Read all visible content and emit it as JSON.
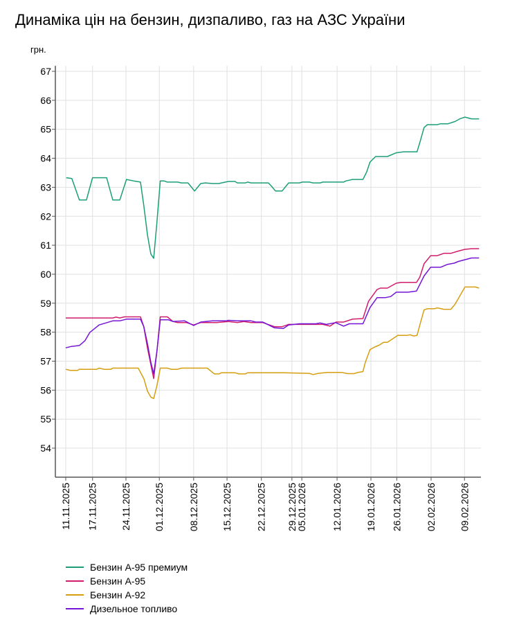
{
  "chart_data": {
    "type": "line",
    "title": "Динаміка цін на бензин, дизпаливо, газ на АЗС України",
    "ylabel": "грн.",
    "xlabel": "",
    "ylim": [
      53,
      67.2
    ],
    "xlim": [
      0,
      88
    ],
    "yticks": [
      54,
      55,
      56,
      57,
      58,
      59,
      60,
      61,
      62,
      63,
      64,
      65,
      66,
      67
    ],
    "xticks": [
      {
        "label": "11.11.2025",
        "x": 0
      },
      {
        "label": "17.11.2025",
        "x": 5.7
      },
      {
        "label": "24.11.2025",
        "x": 12.8
      },
      {
        "label": "01.12.2025",
        "x": 19.9
      },
      {
        "label": "08.12.2025",
        "x": 27.2
      },
      {
        "label": "15.12.2025",
        "x": 34.3
      },
      {
        "label": "22.12.2025",
        "x": 41.6
      },
      {
        "label": "29.12.2025",
        "x": 48.1
      },
      {
        "label": "05.01.2026",
        "x": 50.2
      },
      {
        "label": "12.01.2026",
        "x": 57.7
      },
      {
        "label": "19.01.2026",
        "x": 64.9
      },
      {
        "label": "26.01.2026",
        "x": 70.4
      },
      {
        "label": "02.02.2026",
        "x": 77.7
      },
      {
        "label": "09.02.2026",
        "x": 84.8
      }
    ],
    "grid": true,
    "legend_position": "bottom-left",
    "series": [
      {
        "name": "Бензин А-95 премиум",
        "color": "#1b9e77",
        "points": [
          [
            0.1,
            63.33
          ],
          [
            1.3,
            63.3
          ],
          [
            2.9,
            62.56
          ],
          [
            4.4,
            62.56
          ],
          [
            5.7,
            63.33
          ],
          [
            8.7,
            63.33
          ],
          [
            10,
            62.56
          ],
          [
            11.5,
            62.56
          ],
          [
            12.9,
            63.27
          ],
          [
            14.4,
            63.22
          ],
          [
            15.9,
            63.18
          ],
          [
            16.6,
            62.37
          ],
          [
            17.4,
            61.34
          ],
          [
            18.1,
            60.7
          ],
          [
            18.7,
            60.55
          ],
          [
            19.4,
            61.8
          ],
          [
            20.1,
            63.22
          ],
          [
            20.9,
            63.22
          ],
          [
            21.6,
            63.18
          ],
          [
            23.8,
            63.18
          ],
          [
            24.6,
            63.15
          ],
          [
            26,
            63.15
          ],
          [
            27.4,
            62.87
          ],
          [
            28.7,
            63.13
          ],
          [
            29.7,
            63.15
          ],
          [
            31.2,
            63.13
          ],
          [
            32.6,
            63.13
          ],
          [
            33.1,
            63.15
          ],
          [
            34.6,
            63.2
          ],
          [
            36,
            63.2
          ],
          [
            36.5,
            63.15
          ],
          [
            38.2,
            63.15
          ],
          [
            38.7,
            63.18
          ],
          [
            39.4,
            63.15
          ],
          [
            43.1,
            63.15
          ],
          [
            43.8,
            63.03
          ],
          [
            44.6,
            62.87
          ],
          [
            46,
            62.87
          ],
          [
            47.4,
            63.15
          ],
          [
            49.7,
            63.15
          ],
          [
            50.3,
            63.18
          ],
          [
            51.8,
            63.18
          ],
          [
            52.6,
            63.15
          ],
          [
            54.1,
            63.15
          ],
          [
            54.7,
            63.18
          ],
          [
            59.1,
            63.18
          ],
          [
            59.6,
            63.22
          ],
          [
            61,
            63.27
          ],
          [
            63.2,
            63.27
          ],
          [
            64,
            63.53
          ],
          [
            64.7,
            63.87
          ],
          [
            65.9,
            64.06
          ],
          [
            68.4,
            64.06
          ],
          [
            70.3,
            64.19
          ],
          [
            71.8,
            64.22
          ],
          [
            74.7,
            64.22
          ],
          [
            75.4,
            64.6
          ],
          [
            76.2,
            65.06
          ],
          [
            76.9,
            65.16
          ],
          [
            79,
            65.16
          ],
          [
            79.7,
            65.19
          ],
          [
            81.3,
            65.19
          ],
          [
            82.8,
            65.27
          ],
          [
            83.8,
            65.36
          ],
          [
            84.9,
            65.42
          ],
          [
            86.3,
            65.36
          ],
          [
            87.9,
            65.36
          ]
        ]
      },
      {
        "name": "Бензин А-95",
        "color": "#d01c6b",
        "points": [
          [
            0,
            58.49
          ],
          [
            10,
            58.49
          ],
          [
            10.7,
            58.52
          ],
          [
            11.5,
            58.49
          ],
          [
            12.5,
            58.53
          ],
          [
            15.9,
            58.53
          ],
          [
            16.6,
            58.19
          ],
          [
            17.4,
            57.44
          ],
          [
            18.1,
            56.88
          ],
          [
            18.7,
            56.4
          ],
          [
            19.4,
            57.35
          ],
          [
            20.1,
            58.53
          ],
          [
            21.6,
            58.53
          ],
          [
            22.8,
            58.37
          ],
          [
            23.8,
            58.33
          ],
          [
            25.7,
            58.33
          ],
          [
            27.2,
            58.25
          ],
          [
            28.7,
            58.33
          ],
          [
            31.2,
            58.33
          ],
          [
            32.1,
            58.33
          ],
          [
            34.6,
            58.37
          ],
          [
            36.5,
            58.33
          ],
          [
            37.9,
            58.37
          ],
          [
            39.4,
            58.33
          ],
          [
            41.9,
            58.33
          ],
          [
            44.4,
            58.19
          ],
          [
            46,
            58.19
          ],
          [
            47.4,
            58.27
          ],
          [
            54.7,
            58.27
          ],
          [
            56.2,
            58.21
          ],
          [
            57.5,
            58.35
          ],
          [
            59.1,
            58.35
          ],
          [
            61,
            58.45
          ],
          [
            63.2,
            58.47
          ],
          [
            64.4,
            59.07
          ],
          [
            66.2,
            59.47
          ],
          [
            66.9,
            59.52
          ],
          [
            68.4,
            59.52
          ],
          [
            70.3,
            59.69
          ],
          [
            71.3,
            59.72
          ],
          [
            74.6,
            59.72
          ],
          [
            75.3,
            59.9
          ],
          [
            76.2,
            60.36
          ],
          [
            77.6,
            60.64
          ],
          [
            79,
            60.64
          ],
          [
            80.4,
            60.72
          ],
          [
            81.9,
            60.72
          ],
          [
            83.5,
            60.8
          ],
          [
            84.9,
            60.86
          ],
          [
            86.3,
            60.88
          ],
          [
            87.9,
            60.88
          ]
        ]
      },
      {
        "name": "Бензин А-92",
        "color": "#d69e0f",
        "points": [
          [
            0,
            56.72
          ],
          [
            1,
            56.68
          ],
          [
            2.5,
            56.68
          ],
          [
            2.9,
            56.72
          ],
          [
            6.6,
            56.72
          ],
          [
            7.1,
            56.76
          ],
          [
            8.1,
            56.72
          ],
          [
            9.6,
            56.72
          ],
          [
            10,
            56.76
          ],
          [
            15.4,
            56.76
          ],
          [
            16.6,
            56.4
          ],
          [
            17.4,
            55.96
          ],
          [
            18.1,
            55.76
          ],
          [
            18.7,
            55.71
          ],
          [
            19.4,
            56.16
          ],
          [
            20.1,
            56.76
          ],
          [
            21.6,
            56.76
          ],
          [
            22.4,
            56.72
          ],
          [
            23.8,
            56.72
          ],
          [
            24.6,
            56.76
          ],
          [
            30.1,
            56.76
          ],
          [
            31.6,
            56.56
          ],
          [
            32.6,
            56.56
          ],
          [
            33.1,
            56.6
          ],
          [
            36,
            56.6
          ],
          [
            36.8,
            56.56
          ],
          [
            38.2,
            56.56
          ],
          [
            38.7,
            56.6
          ],
          [
            46.3,
            56.6
          ],
          [
            51.8,
            56.58
          ],
          [
            52.6,
            56.54
          ],
          [
            53.7,
            56.58
          ],
          [
            55.6,
            56.61
          ],
          [
            58.8,
            56.61
          ],
          [
            59.9,
            56.57
          ],
          [
            61.3,
            56.57
          ],
          [
            62.1,
            56.61
          ],
          [
            63.2,
            56.64
          ],
          [
            63.7,
            56.96
          ],
          [
            64.7,
            57.4
          ],
          [
            65.7,
            57.49
          ],
          [
            66.6,
            57.55
          ],
          [
            67.6,
            57.65
          ],
          [
            68.4,
            57.65
          ],
          [
            69.6,
            57.78
          ],
          [
            70.6,
            57.89
          ],
          [
            72.5,
            57.89
          ],
          [
            73.2,
            57.91
          ],
          [
            74,
            57.87
          ],
          [
            74.7,
            57.89
          ],
          [
            75.4,
            58.31
          ],
          [
            76.2,
            58.77
          ],
          [
            76.9,
            58.81
          ],
          [
            78.4,
            58.81
          ],
          [
            79,
            58.84
          ],
          [
            80.4,
            58.79
          ],
          [
            81.9,
            58.79
          ],
          [
            82.8,
            58.97
          ],
          [
            84.9,
            59.56
          ],
          [
            87.1,
            59.56
          ],
          [
            87.9,
            59.52
          ]
        ]
      },
      {
        "name": "Дизельное топливо",
        "color": "#7414d6",
        "points": [
          [
            0,
            57.46
          ],
          [
            1.2,
            57.51
          ],
          [
            2.9,
            57.54
          ],
          [
            4.1,
            57.71
          ],
          [
            5.1,
            57.99
          ],
          [
            7.1,
            58.25
          ],
          [
            10,
            58.39
          ],
          [
            11.5,
            58.39
          ],
          [
            12.9,
            58.45
          ],
          [
            15.9,
            58.45
          ],
          [
            16.6,
            58.19
          ],
          [
            17.4,
            57.59
          ],
          [
            18.1,
            56.96
          ],
          [
            18.7,
            56.56
          ],
          [
            19.4,
            57.35
          ],
          [
            20.1,
            58.43
          ],
          [
            21.8,
            58.43
          ],
          [
            22.8,
            58.37
          ],
          [
            25.3,
            58.39
          ],
          [
            27.2,
            58.23
          ],
          [
            28.7,
            58.35
          ],
          [
            31.2,
            58.39
          ],
          [
            34.1,
            58.39
          ],
          [
            34.6,
            58.41
          ],
          [
            36.5,
            58.39
          ],
          [
            39.4,
            58.39
          ],
          [
            40.4,
            58.35
          ],
          [
            41.9,
            58.35
          ],
          [
            44.4,
            58.15
          ],
          [
            46.3,
            58.13
          ],
          [
            47.4,
            58.25
          ],
          [
            49.7,
            58.29
          ],
          [
            53.2,
            58.29
          ],
          [
            54.1,
            58.32
          ],
          [
            55.4,
            58.27
          ],
          [
            57.4,
            58.33
          ],
          [
            59.1,
            58.21
          ],
          [
            60.3,
            58.29
          ],
          [
            63.2,
            58.29
          ],
          [
            64.7,
            58.85
          ],
          [
            66.2,
            59.19
          ],
          [
            67.9,
            59.19
          ],
          [
            69.1,
            59.23
          ],
          [
            70.3,
            59.38
          ],
          [
            72.8,
            59.38
          ],
          [
            74.6,
            59.42
          ],
          [
            76.2,
            59.94
          ],
          [
            77.6,
            60.24
          ],
          [
            79.7,
            60.24
          ],
          [
            81.2,
            60.34
          ],
          [
            82.6,
            60.38
          ],
          [
            83.5,
            60.44
          ],
          [
            86.3,
            60.56
          ],
          [
            87.9,
            60.56
          ]
        ]
      }
    ]
  }
}
